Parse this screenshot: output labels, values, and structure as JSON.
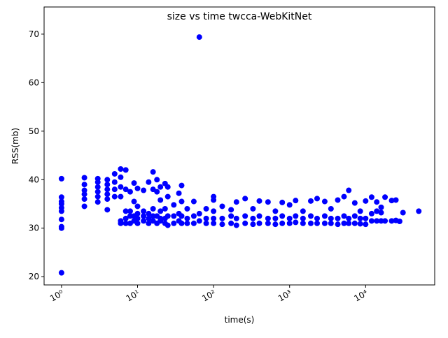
{
  "chart_data": {
    "type": "scatter",
    "title": "size vs time twcca-WebKitNet",
    "x_label": "time(s)",
    "y_label": "RSS(mb)",
    "xscale": "log",
    "color": "#0000ff",
    "xlim": [
      0.59,
      81000
    ],
    "ylim": [
      18.3,
      75.6
    ],
    "xticks": [
      {
        "value": 1,
        "label": "10⁰"
      },
      {
        "value": 10,
        "label": "10¹"
      },
      {
        "value": 100,
        "label": "10²"
      },
      {
        "value": 1000,
        "label": "10³"
      },
      {
        "value": 10000,
        "label": "10⁴"
      }
    ],
    "yticks": [
      20,
      30,
      40,
      50,
      60,
      70
    ],
    "x": [
      1,
      1,
      1,
      1,
      1,
      1,
      1,
      1,
      1,
      1,
      2,
      2,
      2,
      2,
      2,
      2,
      3,
      3,
      3,
      3,
      3,
      3,
      4,
      4,
      4,
      4,
      4,
      4,
      5,
      5,
      5,
      5,
      6,
      6,
      6,
      6,
      6,
      6,
      7,
      7,
      7,
      7,
      7,
      8,
      8,
      8,
      8,
      9,
      9,
      9,
      9,
      10,
      10,
      10,
      10,
      10,
      12,
      12,
      12,
      12,
      14,
      14,
      14,
      14,
      16,
      16,
      16,
      16,
      16,
      18,
      18,
      18,
      18,
      20,
      20,
      20,
      20,
      20,
      23,
      23,
      23,
      23,
      25,
      25,
      25,
      25,
      30,
      30,
      30,
      35,
      35,
      35,
      38,
      38,
      38,
      38,
      45,
      45,
      45,
      55,
      55,
      55,
      65,
      65,
      65,
      80,
      80,
      80,
      100,
      100,
      100,
      100,
      100,
      130,
      130,
      130,
      170,
      170,
      170,
      200,
      200,
      200,
      260,
      260,
      260,
      330,
      330,
      330,
      400,
      400,
      400,
      520,
      520,
      520,
      650,
      650,
      650,
      800,
      800,
      800,
      1000,
      1000,
      1000,
      1200,
      1200,
      1200,
      1500,
      1500,
      1500,
      1900,
      1900,
      1900,
      2300,
      2300,
      2300,
      2900,
      2900,
      2900,
      3500,
      3500,
      3500,
      4300,
      4300,
      4300,
      5200,
      5200,
      5200,
      6000,
      6000,
      6000,
      7200,
      7200,
      7200,
      8500,
      8500,
      8500,
      10000,
      10000,
      10000,
      12000,
      12000,
      12000,
      14000,
      14000,
      14000,
      16000,
      16000,
      16000,
      18000,
      18000,
      22000,
      22000,
      25000,
      25000,
      28000,
      31000,
      50000
    ],
    "values": [
      20.8,
      30,
      30.3,
      31.8,
      33.5,
      34.2,
      35,
      35.5,
      36.4,
      40.2,
      34.5,
      36,
      37,
      37.8,
      39,
      40.4,
      35.4,
      36.5,
      37.5,
      38.5,
      39.5,
      40.2,
      33.8,
      36,
      37,
      38,
      39,
      40,
      36.5,
      38,
      39.5,
      41.2,
      31,
      31.5,
      36.5,
      38.5,
      40.5,
      42.2,
      31,
      32,
      33.5,
      38,
      42,
      31,
      32.5,
      33.5,
      37.5,
      31.5,
      32.5,
      35.5,
      39.3,
      31,
      32,
      33,
      34.5,
      38.2,
      31.5,
      32.5,
      33.5,
      37.8,
      31,
      32,
      33,
      39.5,
      31.5,
      32.5,
      34,
      38,
      41.6,
      31,
      32.5,
      37.5,
      40,
      31.5,
      32,
      33.5,
      35.8,
      38.5,
      31,
      32,
      34,
      39.2,
      30.6,
      32.5,
      36.5,
      38.5,
      31,
      32.5,
      34.8,
      31.5,
      33,
      37.2,
      31,
      32.5,
      35.5,
      38.8,
      31,
      32,
      34,
      31,
      32.5,
      35.5,
      31.5,
      33,
      69.4,
      31,
      32,
      34,
      31,
      32,
      33.5,
      35.8,
      36.5,
      30.8,
      32,
      34.5,
      31,
      32.5,
      33.8,
      30.6,
      32,
      35.4,
      31,
      32.5,
      36.1,
      30.8,
      32,
      34,
      31,
      32.5,
      35.6,
      31,
      32,
      35.4,
      30.8,
      32,
      33.5,
      31,
      32.5,
      35.3,
      31,
      32,
      34.8,
      31.2,
      32.5,
      35.7,
      31,
      32,
      33.5,
      31,
      32.5,
      35.6,
      31,
      32,
      36.1,
      31,
      32.5,
      35.5,
      31,
      32,
      34,
      30.8,
      32,
      35.8,
      31,
      32.5,
      36.5,
      31,
      32,
      37.8,
      31,
      32.5,
      35.2,
      30.9,
      32,
      33.5,
      30.8,
      32,
      35.6,
      31.5,
      33,
      36.4,
      31.5,
      33.5,
      35.4,
      31.5,
      33.2,
      34.3,
      31.5,
      36.4,
      31.5,
      35.7,
      31.6,
      35.8,
      31.4,
      33.2,
      33.5
    ]
  }
}
